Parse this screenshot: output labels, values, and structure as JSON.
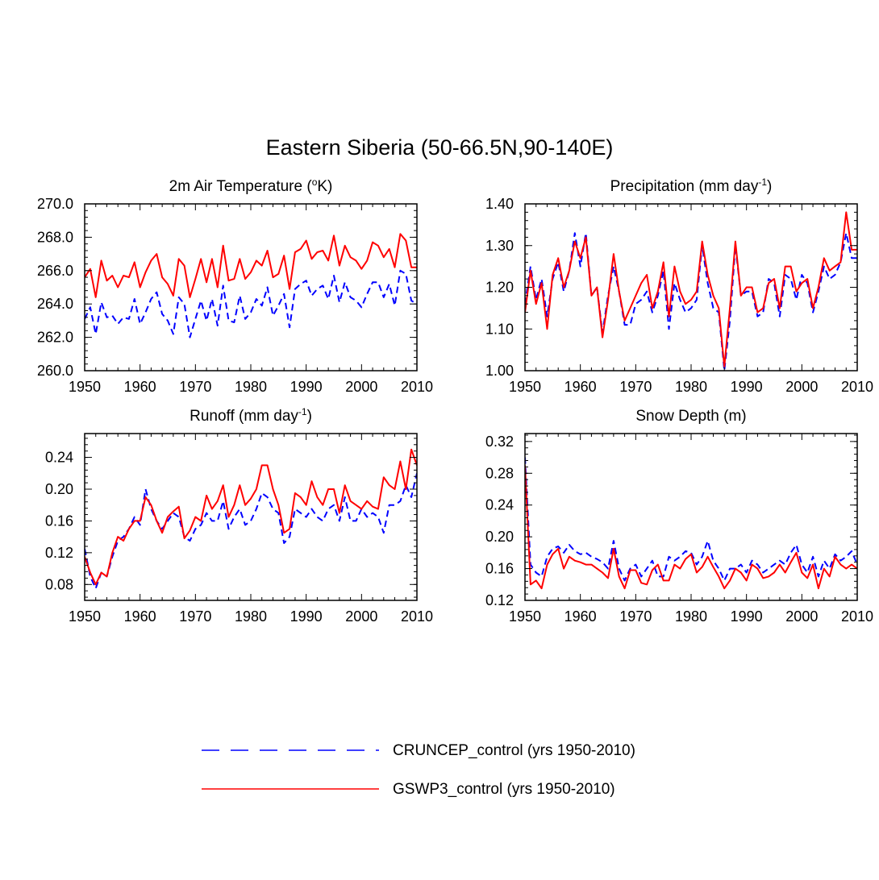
{
  "figure": {
    "title": "Eastern Siberia (50-66.5N,90-140E)"
  },
  "legend": [
    {
      "label": "CRUNCEP_control (yrs 1950-2010)",
      "color": "#0000ff",
      "style": "dashed"
    },
    {
      "label": "GSWP3_control (yrs 1950-2010)",
      "color": "#ff0000",
      "style": "solid"
    }
  ],
  "chart_data": [
    {
      "type": "line",
      "title": "2m Air Temperature (",
      "title_sup": "o",
      "title_end": "K)",
      "xlabel": "",
      "ylabel": "",
      "xlim": [
        1950,
        2010
      ],
      "ylim": [
        260,
        270
      ],
      "xticks": [
        1950,
        1960,
        1970,
        1980,
        1990,
        2000,
        2010
      ],
      "yticks": [
        260,
        262,
        264,
        266,
        268,
        270
      ],
      "ytick_labels": [
        "260.0",
        "262.0",
        "264.0",
        "266.0",
        "268.0",
        "270.0"
      ],
      "grid": false,
      "x": [
        1950,
        1951,
        1952,
        1953,
        1954,
        1955,
        1956,
        1957,
        1958,
        1959,
        1960,
        1961,
        1962,
        1963,
        1964,
        1965,
        1966,
        1967,
        1968,
        1969,
        1970,
        1971,
        1972,
        1973,
        1974,
        1975,
        1976,
        1977,
        1978,
        1979,
        1980,
        1981,
        1982,
        1983,
        1984,
        1985,
        1986,
        1987,
        1988,
        1989,
        1990,
        1991,
        1992,
        1993,
        1994,
        1995,
        1996,
        1997,
        1998,
        1999,
        2000,
        2001,
        2002,
        2003,
        2004,
        2005,
        2006,
        2007,
        2008,
        2009,
        2010
      ],
      "series": [
        {
          "name": "CRUNCEP_control",
          "color": "#0000ff",
          "style": "dashed",
          "values": [
            263.1,
            263.8,
            262.2,
            264.1,
            263.2,
            263.3,
            262.8,
            263.2,
            263.1,
            264.3,
            262.8,
            263.5,
            264.3,
            264.7,
            263.4,
            263.0,
            262.2,
            264.4,
            264.0,
            262.0,
            263.1,
            264.2,
            263.0,
            264.3,
            262.7,
            265.1,
            263.0,
            262.9,
            264.5,
            263.1,
            263.5,
            264.3,
            263.9,
            265.0,
            263.3,
            263.9,
            264.6,
            262.6,
            264.9,
            265.2,
            265.4,
            264.5,
            264.9,
            265.1,
            264.3,
            265.7,
            264.1,
            265.3,
            264.4,
            264.2,
            263.8,
            264.6,
            265.3,
            265.3,
            264.4,
            265.2,
            263.9,
            266.0,
            265.8,
            264.2,
            264.0
          ]
        },
        {
          "name": "GSWP3_control",
          "color": "#ff0000",
          "style": "solid",
          "values": [
            265.6,
            266.1,
            264.4,
            266.6,
            265.4,
            265.7,
            265.0,
            265.7,
            265.6,
            266.5,
            265.0,
            265.9,
            266.6,
            267.0,
            265.6,
            265.2,
            264.5,
            266.7,
            266.3,
            264.4,
            265.5,
            266.7,
            265.3,
            266.7,
            265.0,
            267.5,
            265.4,
            265.5,
            266.7,
            265.5,
            265.9,
            266.6,
            266.3,
            267.2,
            265.6,
            265.8,
            266.9,
            264.9,
            267.1,
            267.3,
            267.8,
            266.7,
            267.1,
            267.2,
            266.6,
            268.1,
            266.3,
            267.5,
            266.8,
            266.6,
            266.1,
            266.6,
            267.7,
            267.5,
            266.8,
            267.3,
            266.2,
            268.2,
            267.8,
            266.2,
            266.2
          ]
        }
      ]
    },
    {
      "type": "line",
      "title": "Precipitation (mm day",
      "title_sup": "-1",
      "title_end": ")",
      "xlabel": "",
      "ylabel": "",
      "xlim": [
        1950,
        2010
      ],
      "ylim": [
        1.0,
        1.4
      ],
      "xticks": [
        1950,
        1960,
        1970,
        1980,
        1990,
        2000,
        2010
      ],
      "yticks": [
        1.0,
        1.1,
        1.2,
        1.3,
        1.4
      ],
      "ytick_labels": [
        "1.00",
        "1.10",
        "1.20",
        "1.30",
        "1.40"
      ],
      "grid": false,
      "x": [
        1950,
        1951,
        1952,
        1953,
        1954,
        1955,
        1956,
        1957,
        1958,
        1959,
        1960,
        1961,
        1962,
        1963,
        1964,
        1965,
        1966,
        1967,
        1968,
        1969,
        1970,
        1971,
        1972,
        1973,
        1974,
        1975,
        1976,
        1977,
        1978,
        1979,
        1980,
        1981,
        1982,
        1983,
        1984,
        1985,
        1986,
        1987,
        1988,
        1989,
        1990,
        1991,
        1992,
        1993,
        1994,
        1995,
        1996,
        1997,
        1998,
        1999,
        2000,
        2001,
        2002,
        2003,
        2004,
        2005,
        2006,
        2007,
        2008,
        2009,
        2010
      ],
      "series": [
        {
          "name": "CRUNCEP_control",
          "color": "#0000ff",
          "style": "dashed",
          "values": [
            1.16,
            1.25,
            1.17,
            1.22,
            1.13,
            1.22,
            1.26,
            1.19,
            1.24,
            1.33,
            1.25,
            1.33,
            1.18,
            1.2,
            1.09,
            1.18,
            1.25,
            1.19,
            1.11,
            1.11,
            1.16,
            1.17,
            1.19,
            1.14,
            1.18,
            1.24,
            1.1,
            1.21,
            1.17,
            1.14,
            1.15,
            1.17,
            1.3,
            1.21,
            1.15,
            1.14,
            1.0,
            1.12,
            1.3,
            1.18,
            1.19,
            1.19,
            1.13,
            1.14,
            1.22,
            1.21,
            1.13,
            1.23,
            1.22,
            1.17,
            1.23,
            1.21,
            1.14,
            1.19,
            1.25,
            1.22,
            1.23,
            1.26,
            1.33,
            1.27,
            1.27
          ]
        },
        {
          "name": "GSWP3_control",
          "color": "#ff0000",
          "style": "solid",
          "values": [
            1.14,
            1.24,
            1.16,
            1.21,
            1.1,
            1.23,
            1.27,
            1.2,
            1.24,
            1.31,
            1.27,
            1.32,
            1.18,
            1.2,
            1.08,
            1.17,
            1.28,
            1.19,
            1.12,
            1.15,
            1.18,
            1.21,
            1.23,
            1.15,
            1.19,
            1.26,
            1.13,
            1.25,
            1.19,
            1.16,
            1.17,
            1.19,
            1.31,
            1.23,
            1.18,
            1.15,
            1.01,
            1.15,
            1.31,
            1.18,
            1.2,
            1.2,
            1.14,
            1.15,
            1.21,
            1.22,
            1.15,
            1.25,
            1.25,
            1.19,
            1.21,
            1.22,
            1.15,
            1.2,
            1.27,
            1.24,
            1.25,
            1.26,
            1.38,
            1.29,
            1.29
          ]
        }
      ]
    },
    {
      "type": "line",
      "title": "Runoff (mm day",
      "title_sup": "-1",
      "title_end": ")",
      "xlabel": "",
      "ylabel": "",
      "xlim": [
        1950,
        2010
      ],
      "ylim": [
        0.06,
        0.27
      ],
      "xticks": [
        1950,
        1960,
        1970,
        1980,
        1990,
        2000,
        2010
      ],
      "yticks": [
        0.08,
        0.12,
        0.16,
        0.2,
        0.24
      ],
      "ytick_labels": [
        "0.08",
        "0.12",
        "0.16",
        "0.20",
        "0.24"
      ],
      "grid": false,
      "x": [
        1950,
        1951,
        1952,
        1953,
        1954,
        1955,
        1956,
        1957,
        1958,
        1959,
        1960,
        1961,
        1962,
        1963,
        1964,
        1965,
        1966,
        1967,
        1968,
        1969,
        1970,
        1971,
        1972,
        1973,
        1974,
        1975,
        1976,
        1977,
        1978,
        1979,
        1980,
        1981,
        1982,
        1983,
        1984,
        1985,
        1986,
        1987,
        1988,
        1989,
        1990,
        1991,
        1992,
        1993,
        1994,
        1995,
        1996,
        1997,
        1998,
        1999,
        2000,
        2001,
        2002,
        2003,
        2004,
        2005,
        2006,
        2007,
        2008,
        2009,
        2010
      ],
      "series": [
        {
          "name": "CRUNCEP_control",
          "color": "#0000ff",
          "style": "dashed",
          "values": [
            0.125,
            0.09,
            0.075,
            0.095,
            0.09,
            0.115,
            0.135,
            0.14,
            0.15,
            0.165,
            0.155,
            0.2,
            0.175,
            0.16,
            0.15,
            0.16,
            0.17,
            0.165,
            0.14,
            0.135,
            0.15,
            0.155,
            0.17,
            0.16,
            0.16,
            0.185,
            0.15,
            0.165,
            0.175,
            0.155,
            0.16,
            0.175,
            0.195,
            0.19,
            0.175,
            0.17,
            0.132,
            0.14,
            0.175,
            0.17,
            0.165,
            0.175,
            0.165,
            0.16,
            0.175,
            0.18,
            0.16,
            0.19,
            0.16,
            0.16,
            0.175,
            0.165,
            0.17,
            0.165,
            0.145,
            0.18,
            0.18,
            0.185,
            0.205,
            0.19,
            0.22
          ]
        },
        {
          "name": "GSWP3_control",
          "color": "#ff0000",
          "style": "solid",
          "values": [
            0.115,
            0.095,
            0.08,
            0.095,
            0.09,
            0.12,
            0.14,
            0.135,
            0.15,
            0.16,
            0.16,
            0.19,
            0.18,
            0.16,
            0.145,
            0.165,
            0.172,
            0.178,
            0.138,
            0.148,
            0.165,
            0.16,
            0.192,
            0.175,
            0.185,
            0.205,
            0.165,
            0.18,
            0.205,
            0.18,
            0.188,
            0.2,
            0.23,
            0.23,
            0.2,
            0.18,
            0.145,
            0.15,
            0.195,
            0.19,
            0.18,
            0.21,
            0.19,
            0.18,
            0.2,
            0.2,
            0.17,
            0.205,
            0.185,
            0.18,
            0.175,
            0.185,
            0.178,
            0.175,
            0.215,
            0.205,
            0.2,
            0.235,
            0.2,
            0.25,
            0.23
          ]
        }
      ]
    },
    {
      "type": "line",
      "title": "Snow Depth (m)",
      "title_sup": "",
      "title_end": "",
      "xlabel": "",
      "ylabel": "",
      "xlim": [
        1950,
        2010
      ],
      "ylim": [
        0.12,
        0.33
      ],
      "xticks": [
        1950,
        1960,
        1970,
        1980,
        1990,
        2000,
        2010
      ],
      "yticks": [
        0.12,
        0.16,
        0.2,
        0.24,
        0.28,
        0.32
      ],
      "ytick_labels": [
        "0.12",
        "0.16",
        "0.20",
        "0.24",
        "0.28",
        "0.32"
      ],
      "grid": false,
      "x": [
        1950,
        1951,
        1952,
        1953,
        1954,
        1955,
        1956,
        1957,
        1958,
        1959,
        1960,
        1961,
        1962,
        1963,
        1964,
        1965,
        1966,
        1967,
        1968,
        1969,
        1970,
        1971,
        1972,
        1973,
        1974,
        1975,
        1976,
        1977,
        1978,
        1979,
        1980,
        1981,
        1982,
        1983,
        1984,
        1985,
        1986,
        1987,
        1988,
        1989,
        1990,
        1991,
        1992,
        1993,
        1994,
        1995,
        1996,
        1997,
        1998,
        1999,
        2000,
        2001,
        2002,
        2003,
        2004,
        2005,
        2006,
        2007,
        2008,
        2009,
        2010
      ],
      "series": [
        {
          "name": "CRUNCEP_control",
          "color": "#0000ff",
          "style": "dashed",
          "values": [
            0.3,
            0.165,
            0.155,
            0.15,
            0.175,
            0.185,
            0.188,
            0.18,
            0.19,
            0.182,
            0.178,
            0.18,
            0.175,
            0.172,
            0.168,
            0.16,
            0.195,
            0.16,
            0.145,
            0.16,
            0.165,
            0.15,
            0.16,
            0.17,
            0.15,
            0.15,
            0.175,
            0.17,
            0.175,
            0.182,
            0.18,
            0.165,
            0.175,
            0.195,
            0.17,
            0.16,
            0.145,
            0.16,
            0.16,
            0.165,
            0.155,
            0.17,
            0.165,
            0.155,
            0.16,
            0.165,
            0.17,
            0.165,
            0.18,
            0.19,
            0.165,
            0.155,
            0.175,
            0.15,
            0.17,
            0.16,
            0.178,
            0.17,
            0.175,
            0.182,
            0.165
          ]
        },
        {
          "name": "GSWP3_control",
          "color": "#ff0000",
          "style": "solid",
          "values": [
            0.29,
            0.14,
            0.145,
            0.135,
            0.165,
            0.178,
            0.185,
            0.16,
            0.175,
            0.17,
            0.168,
            0.165,
            0.165,
            0.16,
            0.155,
            0.148,
            0.185,
            0.15,
            0.135,
            0.158,
            0.158,
            0.142,
            0.14,
            0.158,
            0.165,
            0.145,
            0.145,
            0.165,
            0.16,
            0.172,
            0.178,
            0.155,
            0.162,
            0.175,
            0.162,
            0.15,
            0.135,
            0.145,
            0.16,
            0.155,
            0.145,
            0.165,
            0.16,
            0.148,
            0.15,
            0.155,
            0.165,
            0.155,
            0.168,
            0.18,
            0.155,
            0.148,
            0.165,
            0.135,
            0.16,
            0.15,
            0.175,
            0.165,
            0.16,
            0.165,
            0.16
          ]
        }
      ]
    }
  ]
}
